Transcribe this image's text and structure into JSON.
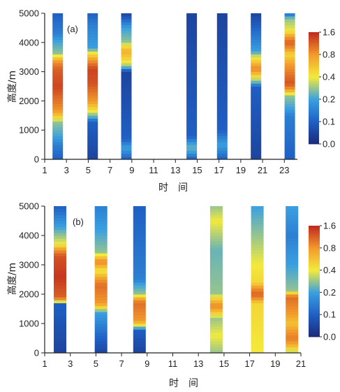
{
  "chart_data": [
    {
      "type": "heatmap",
      "panel_label": "(a)",
      "ylabel": "高度/m",
      "xlabel": "时　间",
      "xlim": [
        1,
        24.2
      ],
      "ylim": [
        0,
        5000
      ],
      "x_ticks": [
        1,
        3,
        5,
        7,
        9,
        11,
        13,
        15,
        17,
        19,
        21,
        23
      ],
      "y_ticks": [
        0,
        1000,
        2000,
        3000,
        4000,
        5000
      ],
      "colorbar": {
        "ticks": [
          "0.0",
          "0.1",
          "0.2",
          "0.4",
          "0.8",
          "1.6"
        ],
        "colors": [
          "#1b2a78",
          "#1f5fc4",
          "#3aa0e0",
          "#f3ea3c",
          "#f29a2c",
          "#c0281e"
        ]
      },
      "columns": [
        {
          "x": 2.2,
          "profile": [
            [
              0,
              0.1
            ],
            [
              500,
              0.15
            ],
            [
              1300,
              0.3
            ],
            [
              1700,
              0.85
            ],
            [
              2500,
              1.4
            ],
            [
              3100,
              1.2
            ],
            [
              3300,
              0.9
            ],
            [
              3600,
              0.3
            ],
            [
              4300,
              0.15
            ],
            [
              5000,
              0.1
            ]
          ]
        },
        {
          "x": 5.4,
          "profile": [
            [
              0,
              0.05
            ],
            [
              1300,
              0.1
            ],
            [
              1600,
              0.35
            ],
            [
              2000,
              0.8
            ],
            [
              2600,
              1.3
            ],
            [
              3100,
              1.4
            ],
            [
              3400,
              0.8
            ],
            [
              3800,
              0.2
            ],
            [
              4600,
              0.15
            ],
            [
              5000,
              0.1
            ]
          ]
        },
        {
          "x": 8.5,
          "profile": [
            [
              0,
              0.1
            ],
            [
              400,
              0.2
            ],
            [
              700,
              0.1
            ],
            [
              3000,
              0.05
            ],
            [
              3300,
              0.4
            ],
            [
              3700,
              0.7
            ],
            [
              4000,
              0.3
            ],
            [
              4500,
              0.2
            ],
            [
              5000,
              0.05
            ]
          ]
        },
        {
          "x": 14.5,
          "profile": [
            [
              0,
              0.1
            ],
            [
              400,
              0.25
            ],
            [
              800,
              0.1
            ],
            [
              5000,
              0.05
            ]
          ]
        },
        {
          "x": 17.3,
          "profile": [
            [
              0,
              0.1
            ],
            [
              500,
              0.2
            ],
            [
              1000,
              0.1
            ],
            [
              5000,
              0.05
            ]
          ]
        },
        {
          "x": 20.4,
          "profile": [
            [
              0,
              0.05
            ],
            [
              2500,
              0.1
            ],
            [
              2800,
              0.4
            ],
            [
              3100,
              0.9
            ],
            [
              3400,
              0.5
            ],
            [
              3700,
              0.2
            ],
            [
              5000,
              0.05
            ]
          ]
        },
        {
          "x": 23.5,
          "profile": [
            [
              0,
              0.1
            ],
            [
              1500,
              0.15
            ],
            [
              2200,
              0.3
            ],
            [
              2600,
              1.3
            ],
            [
              3100,
              0.9
            ],
            [
              3600,
              0.5
            ],
            [
              4000,
              1.2
            ],
            [
              4400,
              0.4
            ],
            [
              4800,
              0.3
            ],
            [
              5000,
              0.1
            ]
          ]
        }
      ]
    },
    {
      "type": "heatmap",
      "panel_label": "(b)",
      "ylabel": "高度/m",
      "xlabel": "时　间",
      "xlim": [
        1,
        21
      ],
      "ylim": [
        0,
        5000
      ],
      "x_ticks": [
        1,
        3,
        5,
        7,
        9,
        11,
        13,
        15,
        17,
        19,
        21
      ],
      "y_ticks": [
        0,
        1000,
        2000,
        3000,
        4000,
        5000
      ],
      "colorbar": {
        "ticks": [
          "0.0",
          "0.1",
          "0.2",
          "0.4",
          "0.8",
          "1.6"
        ],
        "colors": [
          "#1b2a78",
          "#1f5fc4",
          "#3aa0e0",
          "#f3ea3c",
          "#f29a2c",
          "#c0281e"
        ]
      },
      "columns": [
        {
          "x": 2.2,
          "profile": [
            [
              0,
              0.05
            ],
            [
              1700,
              0.1
            ],
            [
              1900,
              1.2
            ],
            [
              2600,
              1.5
            ],
            [
              3300,
              1.3
            ],
            [
              3700,
              0.4
            ],
            [
              4300,
              0.2
            ],
            [
              5000,
              0.1
            ]
          ]
        },
        {
          "x": 5.4,
          "profile": [
            [
              0,
              0.05
            ],
            [
              1400,
              0.2
            ],
            [
              1700,
              0.8
            ],
            [
              2300,
              1.1
            ],
            [
              2800,
              0.4
            ],
            [
              3100,
              0.9
            ],
            [
              3400,
              0.3
            ],
            [
              4200,
              0.2
            ],
            [
              5000,
              0.15
            ]
          ]
        },
        {
          "x": 8.4,
          "profile": [
            [
              0,
              0.05
            ],
            [
              800,
              0.1
            ],
            [
              1100,
              0.8
            ],
            [
              1700,
              1.1
            ],
            [
              2000,
              0.3
            ],
            [
              2500,
              0.15
            ],
            [
              5000,
              0.1
            ]
          ]
        },
        {
          "x": 14.4,
          "profile": [
            [
              0,
              0.3
            ],
            [
              600,
              0.4
            ],
            [
              1200,
              0.3
            ],
            [
              1600,
              0.9
            ],
            [
              2000,
              0.3
            ],
            [
              3500,
              0.25
            ],
            [
              4500,
              0.4
            ],
            [
              5000,
              0.3
            ]
          ]
        },
        {
          "x": 17.6,
          "profile": [
            [
              0,
              0.4
            ],
            [
              1700,
              0.5
            ],
            [
              2000,
              1.2
            ],
            [
              2400,
              0.5
            ],
            [
              3000,
              0.4
            ],
            [
              4000,
              0.3
            ],
            [
              5000,
              0.2
            ]
          ]
        },
        {
          "x": 20.3,
          "profile": [
            [
              0,
              0.3
            ],
            [
              500,
              1.0
            ],
            [
              1000,
              0.6
            ],
            [
              1900,
              1.1
            ],
            [
              2100,
              0.3
            ],
            [
              3000,
              0.2
            ],
            [
              4000,
              0.15
            ],
            [
              5000,
              0.2
            ]
          ]
        }
      ]
    }
  ]
}
